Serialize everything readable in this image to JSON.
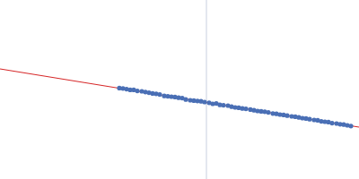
{
  "chart_data": {
    "type": "scatter",
    "tick_labels": false,
    "grid": false,
    "xlim": [
      0,
      100
    ],
    "ylim": [
      0,
      50
    ],
    "reference_x": 57.5,
    "series": [
      {
        "type": "scatter",
        "marker": "circle",
        "color": "#4a6fb5",
        "x": [
          33.25,
          34.25,
          35.25,
          36.25,
          37.25,
          38.25,
          39.5,
          40.5,
          41.5,
          42.5,
          43.5,
          44.5,
          45.75,
          46.75,
          47.75,
          48.75,
          49.75,
          50.75,
          51.75,
          53,
          54,
          55,
          56,
          57,
          58.25,
          59.25,
          60.25,
          61.25,
          62.25,
          63.5,
          64.5,
          65.5,
          66.5,
          67.5,
          68.5,
          69.75,
          70.75,
          71.75,
          72.75,
          73.75,
          74.75,
          76,
          77,
          78,
          79,
          80,
          81.25,
          82.25,
          83.25,
          84.25,
          85.25,
          86.25,
          87.5,
          88.5,
          89.5,
          90.5,
          91.5,
          92.5,
          93.75,
          94.75,
          95.75,
          96.75,
          97.75
        ],
        "values": [
          25.4,
          25.3,
          25.1,
          24.9,
          24.9,
          24.6,
          24.5,
          24.3,
          24.1,
          23.9,
          23.8,
          23.6,
          23.2,
          23.1,
          23.0,
          22.9,
          22.7,
          22.6,
          22.2,
          22.0,
          21.9,
          21.8,
          21.7,
          21.5,
          21.3,
          21.0,
          21.1,
          20.7,
          20.6,
          20.5,
          20.2,
          20.0,
          19.9,
          19.7,
          19.6,
          19.4,
          19.2,
          19.0,
          18.9,
          18.8,
          18.6,
          18.3,
          18.2,
          18.0,
          17.9,
          17.7,
          17.5,
          17.4,
          17.2,
          17.0,
          16.9,
          16.7,
          16.5,
          16.4,
          16.1,
          16.0,
          15.9,
          15.6,
          15.5,
          15.3,
          15.2,
          15.0,
          14.8
        ]
      },
      {
        "type": "line",
        "line_style": "solid",
        "color": "#d62728",
        "x": [
          0,
          100
        ],
        "values": [
          30.75,
          14.5
        ]
      }
    ]
  }
}
